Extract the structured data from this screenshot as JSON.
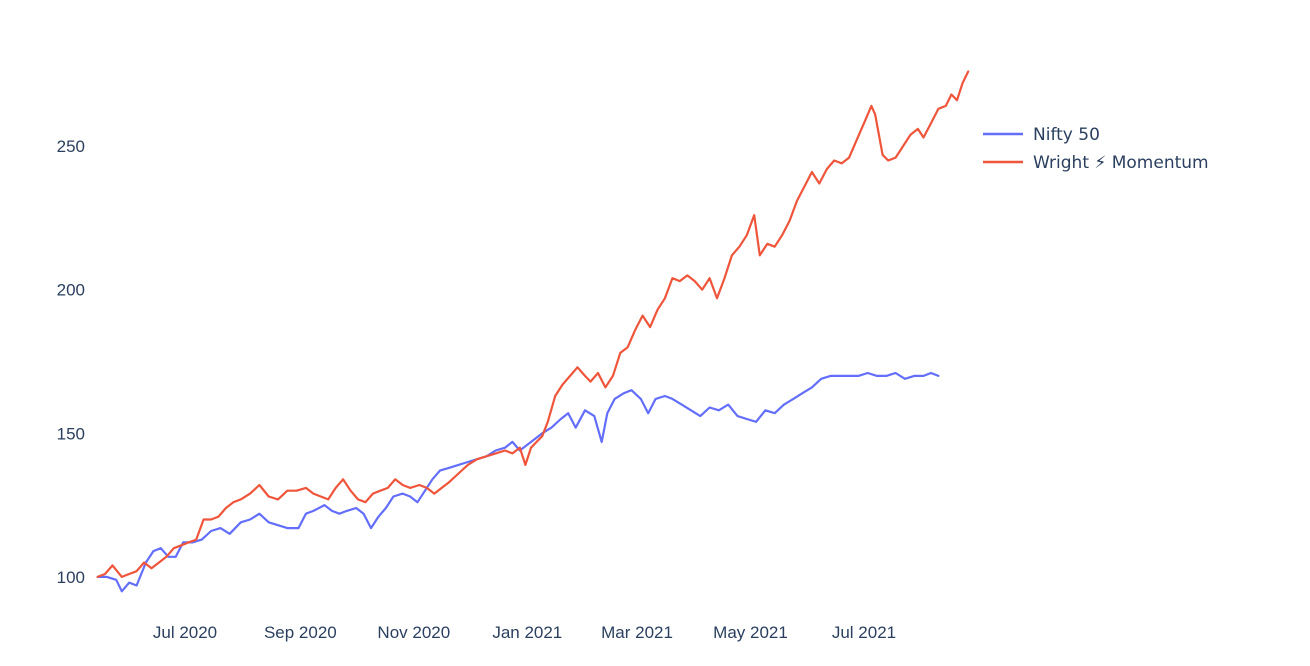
{
  "chart_data": {
    "type": "line",
    "title": "",
    "xlabel": "",
    "ylabel": "",
    "x_range": [
      "2020-05-12",
      "2021-08-20"
    ],
    "ylim": [
      93,
      280
    ],
    "y_ticks": [
      100,
      150,
      200,
      250
    ],
    "x_ticks": [
      {
        "date": "2020-07-01",
        "label": "Jul 2020"
      },
      {
        "date": "2020-09-01",
        "label": "Sep 2020"
      },
      {
        "date": "2020-11-01",
        "label": "Nov 2020"
      },
      {
        "date": "2021-01-01",
        "label": "Jan 2021"
      },
      {
        "date": "2021-03-01",
        "label": "Mar 2021"
      },
      {
        "date": "2021-05-01",
        "label": "May 2021"
      },
      {
        "date": "2021-07-01",
        "label": "Jul 2021"
      }
    ],
    "grid": false,
    "legend_position": "top-right",
    "series": [
      {
        "name": "Nifty 50",
        "color": "#636efa",
        "points": [
          [
            "2020-05-15",
            100
          ],
          [
            "2020-05-20",
            100
          ],
          [
            "2020-05-25",
            99
          ],
          [
            "2020-05-28",
            95
          ],
          [
            "2020-06-01",
            98
          ],
          [
            "2020-06-05",
            97
          ],
          [
            "2020-06-10",
            105
          ],
          [
            "2020-06-14",
            109
          ],
          [
            "2020-06-18",
            110
          ],
          [
            "2020-06-22",
            107
          ],
          [
            "2020-06-26",
            107
          ],
          [
            "2020-06-30",
            112
          ],
          [
            "2020-07-05",
            112
          ],
          [
            "2020-07-10",
            113
          ],
          [
            "2020-07-15",
            116
          ],
          [
            "2020-07-20",
            117
          ],
          [
            "2020-07-25",
            115
          ],
          [
            "2020-07-31",
            119
          ],
          [
            "2020-08-05",
            120
          ],
          [
            "2020-08-10",
            122
          ],
          [
            "2020-08-15",
            119
          ],
          [
            "2020-08-20",
            118
          ],
          [
            "2020-08-25",
            117
          ],
          [
            "2020-08-31",
            117
          ],
          [
            "2020-09-04",
            122
          ],
          [
            "2020-09-08",
            123
          ],
          [
            "2020-09-14",
            125
          ],
          [
            "2020-09-18",
            123
          ],
          [
            "2020-09-22",
            122
          ],
          [
            "2020-09-26",
            123
          ],
          [
            "2020-10-01",
            124
          ],
          [
            "2020-10-05",
            122
          ],
          [
            "2020-10-09",
            117
          ],
          [
            "2020-10-13",
            121
          ],
          [
            "2020-10-17",
            124
          ],
          [
            "2020-10-21",
            128
          ],
          [
            "2020-10-26",
            129
          ],
          [
            "2020-10-30",
            128
          ],
          [
            "2020-11-03",
            126
          ],
          [
            "2020-11-07",
            130
          ],
          [
            "2020-11-11",
            134
          ],
          [
            "2020-11-15",
            137
          ],
          [
            "2020-11-20",
            138
          ],
          [
            "2020-11-25",
            139
          ],
          [
            "2020-11-30",
            140
          ],
          [
            "2020-12-05",
            141
          ],
          [
            "2020-12-10",
            142
          ],
          [
            "2020-12-15",
            144
          ],
          [
            "2020-12-20",
            145
          ],
          [
            "2020-12-24",
            147
          ],
          [
            "2020-12-28",
            144
          ],
          [
            "2021-01-01",
            146
          ],
          [
            "2021-01-05",
            148
          ],
          [
            "2021-01-09",
            150
          ],
          [
            "2021-01-14",
            152
          ],
          [
            "2021-01-19",
            155
          ],
          [
            "2021-01-23",
            157
          ],
          [
            "2021-01-27",
            152
          ],
          [
            "2021-02-01",
            158
          ],
          [
            "2021-02-06",
            156
          ],
          [
            "2021-02-10",
            147
          ],
          [
            "2021-02-13",
            157
          ],
          [
            "2021-02-17",
            162
          ],
          [
            "2021-02-22",
            164
          ],
          [
            "2021-02-26",
            165
          ],
          [
            "2021-03-03",
            162
          ],
          [
            "2021-03-07",
            157
          ],
          [
            "2021-03-11",
            162
          ],
          [
            "2021-03-16",
            163
          ],
          [
            "2021-03-20",
            162
          ],
          [
            "2021-03-25",
            160
          ],
          [
            "2021-03-30",
            158
          ],
          [
            "2021-04-04",
            156
          ],
          [
            "2021-04-09",
            159
          ],
          [
            "2021-04-14",
            158
          ],
          [
            "2021-04-19",
            160
          ],
          [
            "2021-04-24",
            156
          ],
          [
            "2021-04-29",
            155
          ],
          [
            "2021-05-04",
            154
          ],
          [
            "2021-05-09",
            158
          ],
          [
            "2021-05-14",
            157
          ],
          [
            "2021-05-19",
            160
          ],
          [
            "2021-05-24",
            162
          ],
          [
            "2021-05-29",
            164
          ],
          [
            "2021-06-03",
            166
          ],
          [
            "2021-06-08",
            169
          ],
          [
            "2021-06-13",
            170
          ],
          [
            "2021-06-18",
            170
          ],
          [
            "2021-06-23",
            170
          ],
          [
            "2021-06-28",
            170
          ],
          [
            "2021-07-03",
            171
          ],
          [
            "2021-07-08",
            170
          ],
          [
            "2021-07-13",
            170
          ],
          [
            "2021-07-18",
            171
          ],
          [
            "2021-07-23",
            169
          ],
          [
            "2021-07-28",
            170
          ],
          [
            "2021-08-02",
            170
          ],
          [
            "2021-08-06",
            171
          ],
          [
            "2021-08-10",
            170
          ]
        ]
      },
      {
        "name": "Wright ⚡ Momentum",
        "color": "#ef553b",
        "points": [
          [
            "2020-05-15",
            100
          ],
          [
            "2020-05-19",
            101
          ],
          [
            "2020-05-23",
            104
          ],
          [
            "2020-05-28",
            100
          ],
          [
            "2020-06-01",
            101
          ],
          [
            "2020-06-05",
            102
          ],
          [
            "2020-06-09",
            105
          ],
          [
            "2020-06-13",
            103
          ],
          [
            "2020-06-17",
            105
          ],
          [
            "2020-06-21",
            107
          ],
          [
            "2020-06-25",
            110
          ],
          [
            "2020-06-29",
            111
          ],
          [
            "2020-07-03",
            112
          ],
          [
            "2020-07-07",
            113
          ],
          [
            "2020-07-11",
            120
          ],
          [
            "2020-07-15",
            120
          ],
          [
            "2020-07-19",
            121
          ],
          [
            "2020-07-23",
            124
          ],
          [
            "2020-07-27",
            126
          ],
          [
            "2020-07-31",
            127
          ],
          [
            "2020-08-05",
            129
          ],
          [
            "2020-08-10",
            132
          ],
          [
            "2020-08-15",
            128
          ],
          [
            "2020-08-20",
            127
          ],
          [
            "2020-08-25",
            130
          ],
          [
            "2020-08-30",
            130
          ],
          [
            "2020-09-04",
            131
          ],
          [
            "2020-09-08",
            129
          ],
          [
            "2020-09-12",
            128
          ],
          [
            "2020-09-16",
            127
          ],
          [
            "2020-09-20",
            131
          ],
          [
            "2020-09-24",
            134
          ],
          [
            "2020-09-28",
            130
          ],
          [
            "2020-10-02",
            127
          ],
          [
            "2020-10-06",
            126
          ],
          [
            "2020-10-10",
            129
          ],
          [
            "2020-10-14",
            130
          ],
          [
            "2020-10-18",
            131
          ],
          [
            "2020-10-22",
            134
          ],
          [
            "2020-10-26",
            132
          ],
          [
            "2020-10-30",
            131
          ],
          [
            "2020-11-04",
            132
          ],
          [
            "2020-11-08",
            131
          ],
          [
            "2020-11-12",
            129
          ],
          [
            "2020-11-16",
            131
          ],
          [
            "2020-11-20",
            133
          ],
          [
            "2020-11-25",
            136
          ],
          [
            "2020-11-30",
            139
          ],
          [
            "2020-12-05",
            141
          ],
          [
            "2020-12-10",
            142
          ],
          [
            "2020-12-15",
            143
          ],
          [
            "2020-12-20",
            144
          ],
          [
            "2020-12-24",
            143
          ],
          [
            "2020-12-28",
            145
          ],
          [
            "2020-12-31",
            139
          ],
          [
            "2021-01-03",
            145
          ],
          [
            "2021-01-06",
            147
          ],
          [
            "2021-01-09",
            149
          ],
          [
            "2021-01-12",
            154
          ],
          [
            "2021-01-16",
            163
          ],
          [
            "2021-01-20",
            167
          ],
          [
            "2021-01-24",
            170
          ],
          [
            "2021-01-28",
            173
          ],
          [
            "2021-02-01",
            170
          ],
          [
            "2021-02-04",
            168
          ],
          [
            "2021-02-08",
            171
          ],
          [
            "2021-02-12",
            166
          ],
          [
            "2021-02-16",
            170
          ],
          [
            "2021-02-20",
            178
          ],
          [
            "2021-02-24",
            180
          ],
          [
            "2021-02-28",
            186
          ],
          [
            "2021-03-04",
            191
          ],
          [
            "2021-03-08",
            187
          ],
          [
            "2021-03-12",
            193
          ],
          [
            "2021-03-16",
            197
          ],
          [
            "2021-03-20",
            204
          ],
          [
            "2021-03-24",
            203
          ],
          [
            "2021-03-28",
            205
          ],
          [
            "2021-04-01",
            203
          ],
          [
            "2021-04-05",
            200
          ],
          [
            "2021-04-09",
            204
          ],
          [
            "2021-04-13",
            197
          ],
          [
            "2021-04-17",
            204
          ],
          [
            "2021-04-21",
            212
          ],
          [
            "2021-04-25",
            215
          ],
          [
            "2021-04-29",
            219
          ],
          [
            "2021-05-03",
            226
          ],
          [
            "2021-05-06",
            212
          ],
          [
            "2021-05-10",
            216
          ],
          [
            "2021-05-14",
            215
          ],
          [
            "2021-05-18",
            219
          ],
          [
            "2021-05-22",
            224
          ],
          [
            "2021-05-26",
            231
          ],
          [
            "2021-05-30",
            236
          ],
          [
            "2021-06-03",
            241
          ],
          [
            "2021-06-07",
            237
          ],
          [
            "2021-06-11",
            242
          ],
          [
            "2021-06-15",
            245
          ],
          [
            "2021-06-19",
            244
          ],
          [
            "2021-06-23",
            246
          ],
          [
            "2021-06-27",
            252
          ],
          [
            "2021-07-01",
            258
          ],
          [
            "2021-07-05",
            264
          ],
          [
            "2021-07-07",
            261
          ],
          [
            "2021-07-11",
            247
          ],
          [
            "2021-07-14",
            245
          ],
          [
            "2021-07-18",
            246
          ],
          [
            "2021-07-22",
            250
          ],
          [
            "2021-07-26",
            254
          ],
          [
            "2021-07-30",
            256
          ],
          [
            "2021-08-02",
            253
          ],
          [
            "2021-08-06",
            258
          ],
          [
            "2021-08-10",
            263
          ],
          [
            "2021-08-14",
            264
          ],
          [
            "2021-08-17",
            268
          ],
          [
            "2021-08-20",
            266
          ],
          [
            "2021-08-23",
            272
          ],
          [
            "2021-08-26",
            276
          ]
        ]
      }
    ]
  }
}
